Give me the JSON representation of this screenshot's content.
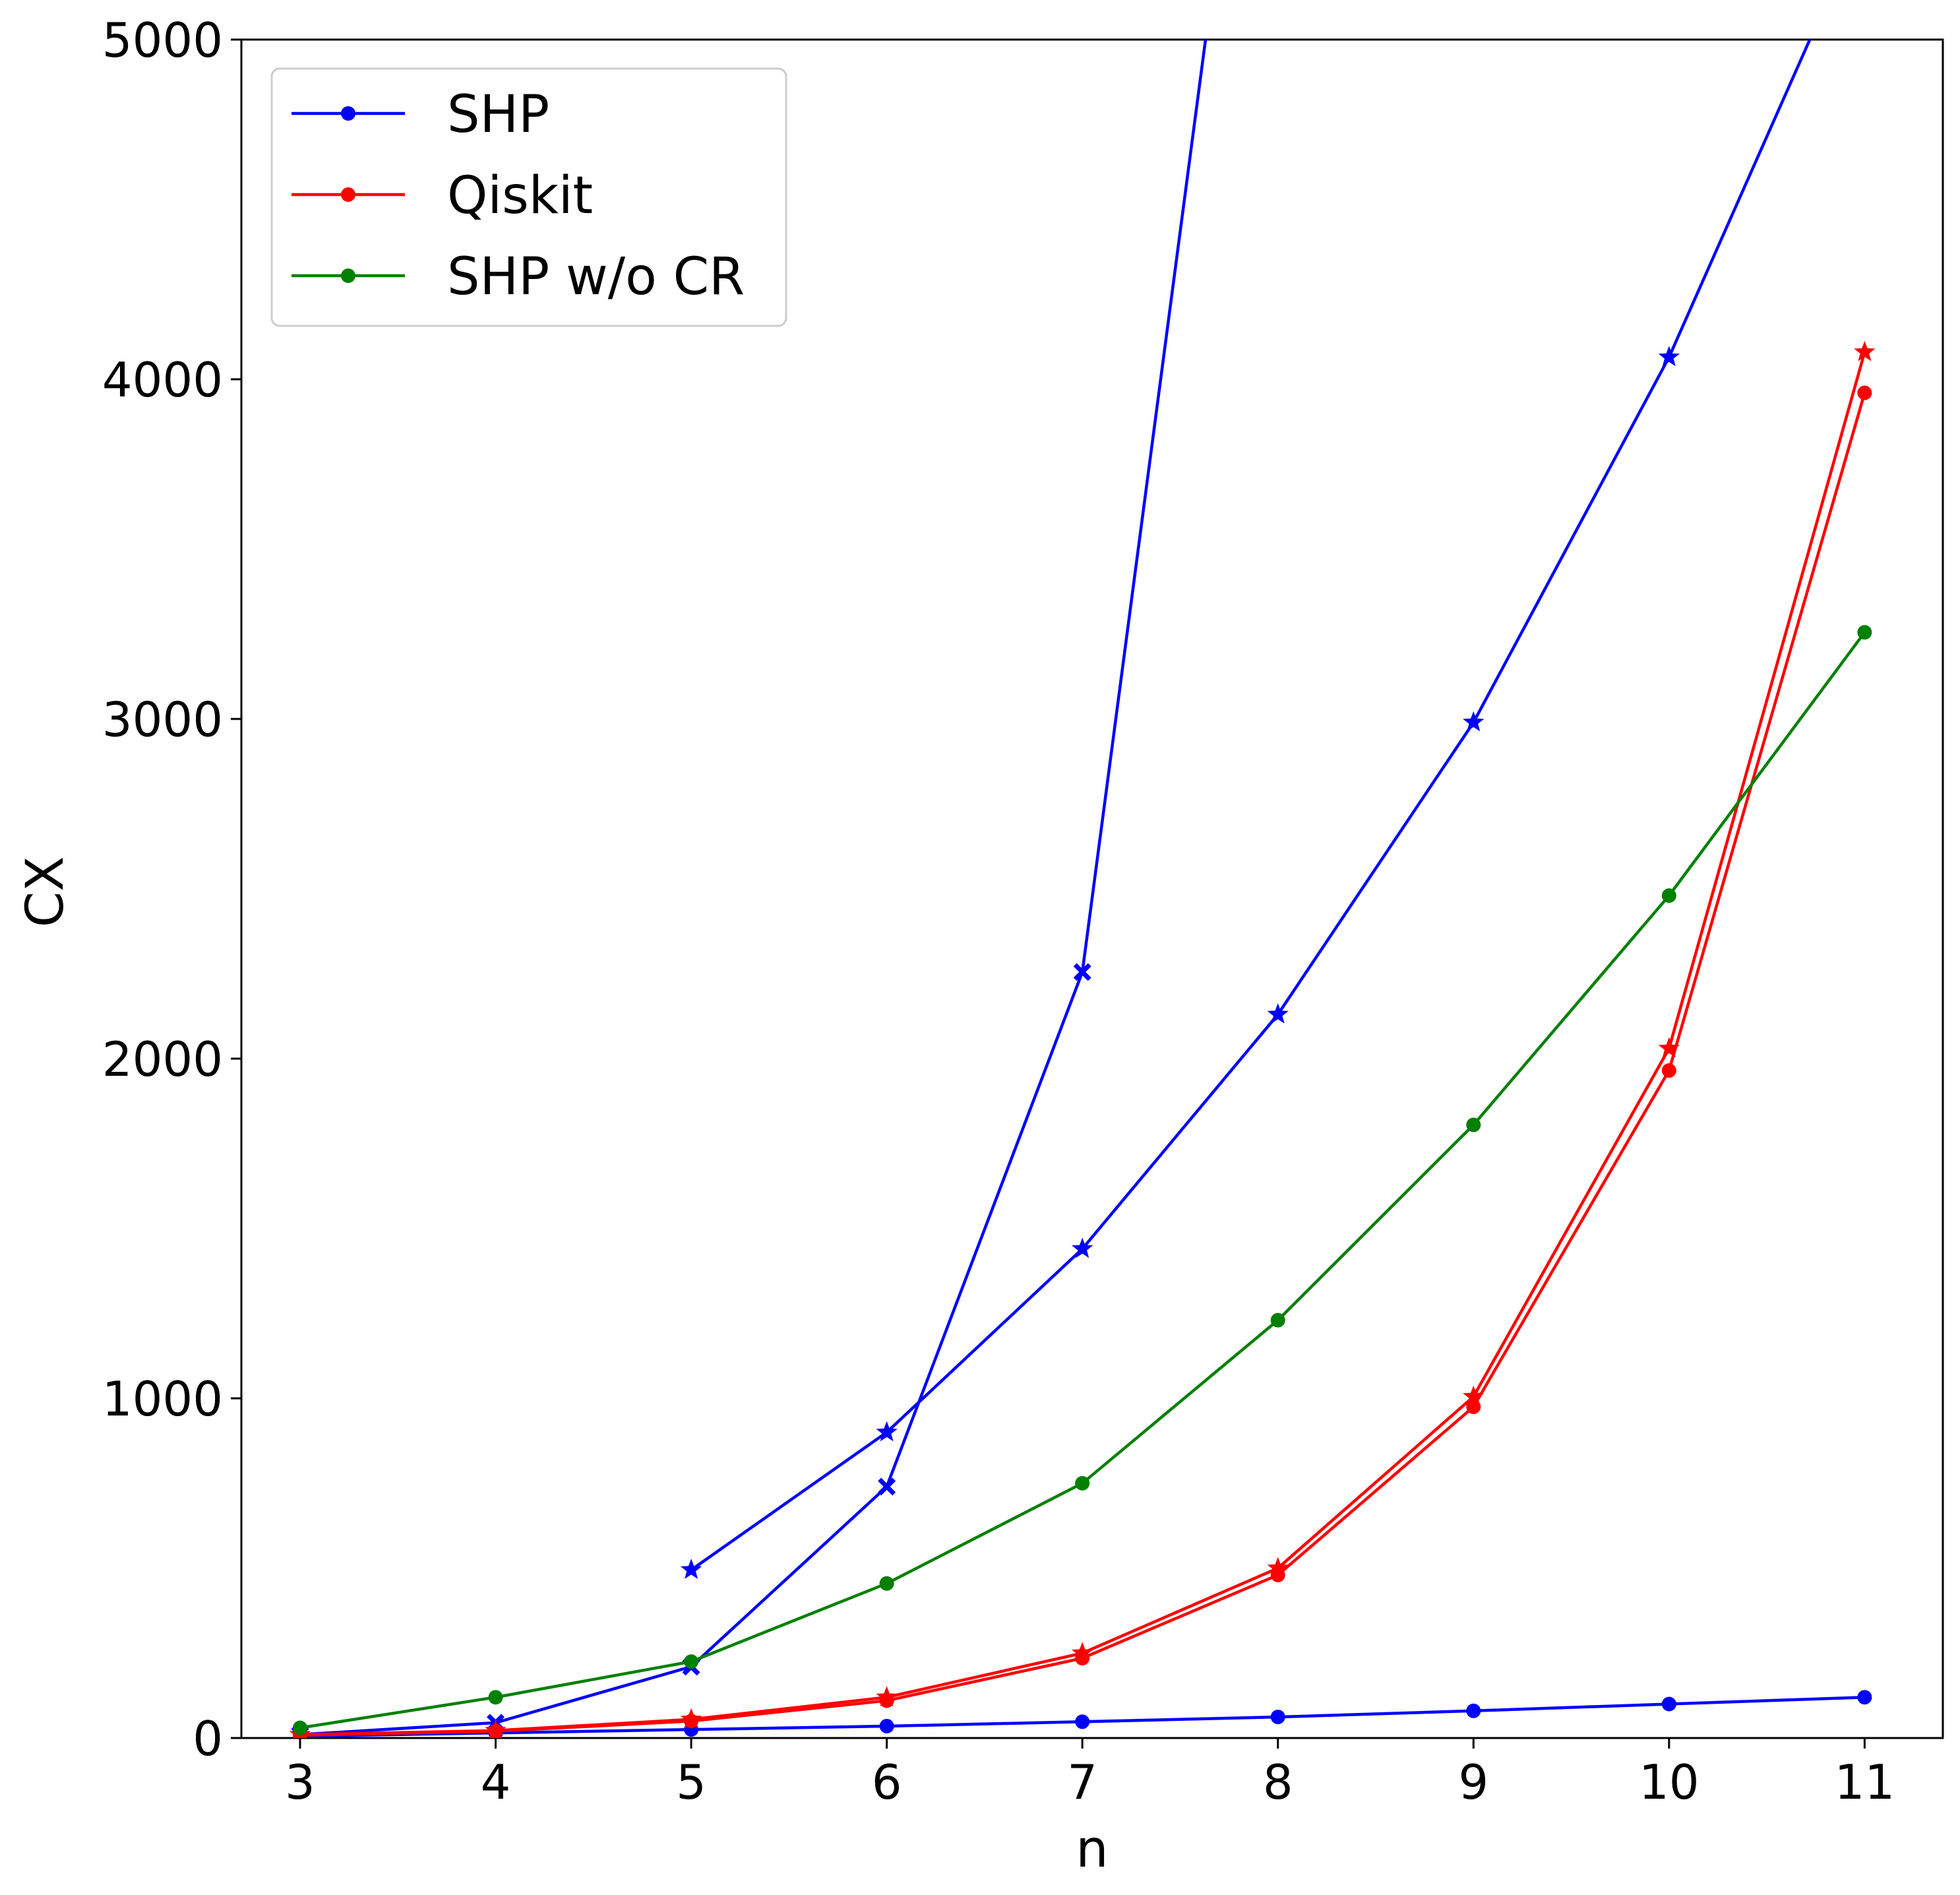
{
  "chart_data": {
    "type": "line",
    "xlabel": "n",
    "ylabel": "CX",
    "xlim": [
      2.7,
      11.4
    ],
    "ylim": [
      0,
      5000
    ],
    "xticks": [
      3,
      4,
      5,
      6,
      7,
      8,
      9,
      10,
      11
    ],
    "yticks": [
      0,
      1000,
      2000,
      3000,
      4000,
      5000
    ],
    "grid": false,
    "legend_position": "top-left",
    "legend": [
      {
        "label": "SHP",
        "color": "#0000ff",
        "marker": "circle"
      },
      {
        "label": "Qiskit",
        "color": "#ff0000",
        "marker": "circle"
      },
      {
        "label": "SHP w/o CR",
        "color": "#008000",
        "marker": "circle"
      }
    ],
    "series": [
      {
        "color": "#0000ff",
        "marker": "circle",
        "x": [
          3,
          4,
          5,
          6,
          7,
          8,
          9,
          10,
          11
        ],
        "y": [
          5,
          15,
          25,
          35,
          48,
          62,
          80,
          100,
          120
        ]
      },
      {
        "color": "#0000ff",
        "marker": "x",
        "x": [
          3,
          4,
          5,
          6,
          7,
          7.63
        ],
        "y": [
          10,
          45,
          210,
          740,
          2255,
          5000
        ]
      },
      {
        "color": "#0000ff",
        "marker": "star",
        "x": [
          5,
          6,
          7,
          8,
          9,
          10,
          10.72
        ],
        "y": [
          495,
          900,
          1440,
          2130,
          2990,
          4065,
          5000
        ]
      },
      {
        "color": "#ff0000",
        "marker": "circle",
        "x": [
          3,
          4,
          5,
          6,
          7,
          8,
          9,
          10,
          11
        ],
        "y": [
          8,
          20,
          50,
          110,
          235,
          480,
          975,
          1965,
          3960
        ]
      },
      {
        "color": "#ff0000",
        "marker": "star",
        "x": [
          3,
          4,
          5,
          6,
          7,
          8,
          9,
          10,
          11
        ],
        "y": [
          10,
          22,
          55,
          120,
          250,
          500,
          1005,
          2030,
          4080
        ]
      },
      {
        "name": "SHP w/o CR",
        "color": "#008000",
        "marker": "circle",
        "x": [
          3,
          4,
          5,
          6,
          7,
          8,
          9,
          10,
          11
        ],
        "y": [
          30,
          120,
          225,
          455,
          750,
          1230,
          1805,
          2480,
          3255
        ]
      }
    ]
  }
}
